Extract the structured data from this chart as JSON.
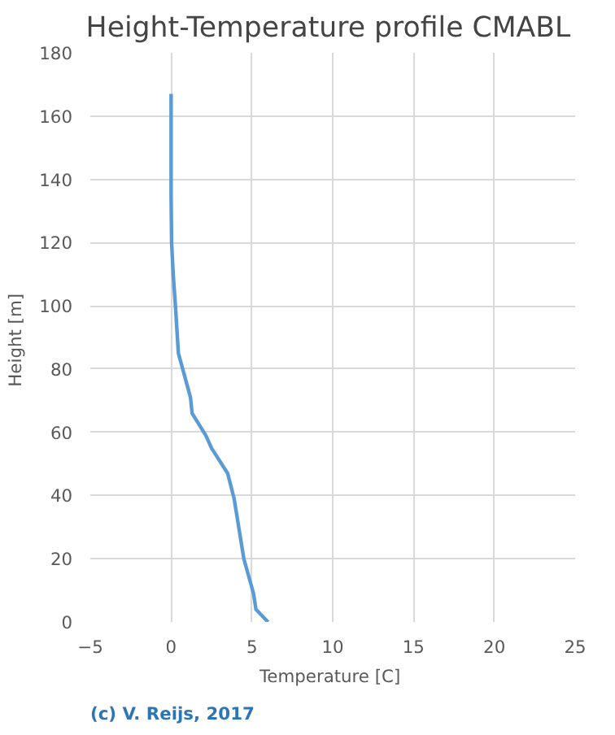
{
  "chart_data": {
    "type": "line",
    "title": "Height-Temperature  profile CMABL",
    "xlabel": "Temperature  [C]",
    "ylabel": "Height  [m]",
    "annotations": [
      "(c) V. Reijs, 2017"
    ],
    "x": [
      6.0,
      5.25,
      5.1,
      4.5,
      3.9,
      3.5,
      2.5,
      2.15,
      1.3,
      1.2,
      0.45,
      0.28,
      0.13,
      0.03,
      0,
      0
    ],
    "series": [
      {
        "color": "#5b9bd5",
        "values": [
          0,
          4,
          9,
          20,
          39,
          47,
          55,
          59,
          66,
          71,
          85,
          99,
          110,
          120,
          135,
          167
        ]
      }
    ],
    "xlim": [
      -5,
      25
    ],
    "ylim": [
      0,
      180
    ],
    "xticks": [
      -5,
      0,
      5,
      10,
      15,
      20,
      25
    ],
    "yticks": [
      0,
      20,
      40,
      60,
      80,
      100,
      120,
      140,
      160,
      180
    ],
    "grid": true,
    "marker": "none",
    "line_style": "solid"
  }
}
